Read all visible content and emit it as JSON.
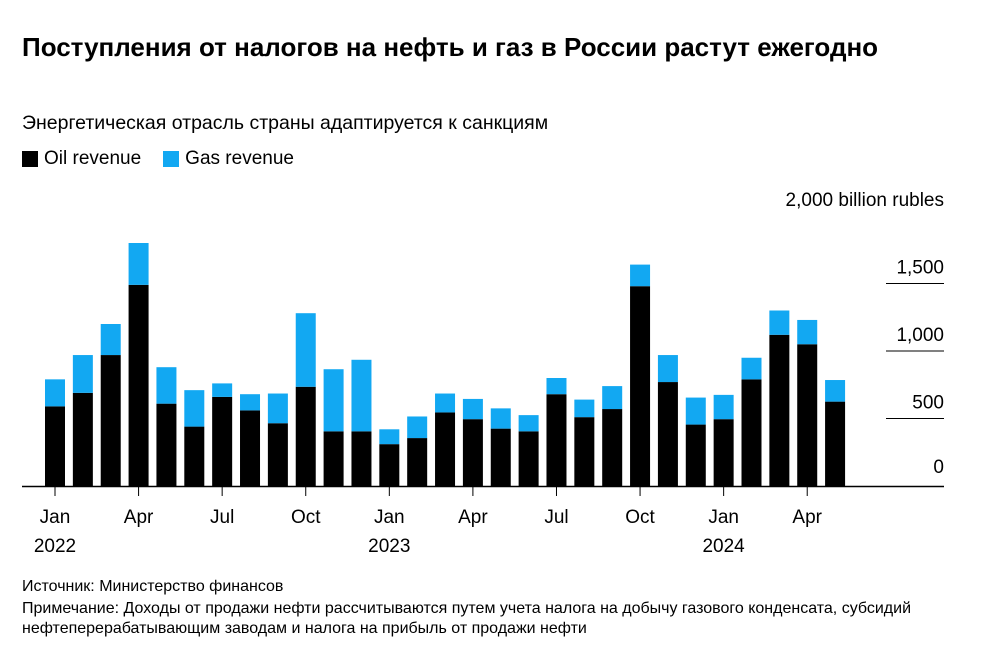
{
  "header": {
    "title": "Поступления от налогов на нефть и газ в России растут ежегодно",
    "subtitle": "Энергетическая отрасль страны адаптируется к санкциям"
  },
  "legend": [
    {
      "label": "Oil revenue",
      "color": "#000000"
    },
    {
      "label": "Gas revenue",
      "color": "#12a8f2"
    }
  ],
  "footer": {
    "source": "Источник: Министерство финансов",
    "note": "Примечание: Доходы от продажи нефти рассчитываются путем учета налога на добычу газового конденсата, субсидий нефтеперерабатывающим заводам и налога на прибыль от продажи нефти"
  },
  "chart_data": {
    "type": "bar",
    "stacked": true,
    "unit_label": "2,000 billion rubles",
    "ylim": [
      0,
      2000
    ],
    "y_ticks": [
      {
        "value": 0,
        "label": "0"
      },
      {
        "value": 500,
        "label": "500"
      },
      {
        "value": 1000,
        "label": "1,000"
      },
      {
        "value": 1500,
        "label": "1,500"
      },
      {
        "value": 2000,
        "label": "2,000 billion rubles"
      }
    ],
    "categories": [
      "2022-01",
      "2022-02",
      "2022-03",
      "2022-04",
      "2022-05",
      "2022-06",
      "2022-07",
      "2022-08",
      "2022-09",
      "2022-10",
      "2022-11",
      "2022-12",
      "2023-01",
      "2023-02",
      "2023-03",
      "2023-04",
      "2023-05",
      "2023-06",
      "2023-07",
      "2023-08",
      "2023-09",
      "2023-10",
      "2023-11",
      "2023-12",
      "2024-01",
      "2024-02",
      "2024-03",
      "2024-04",
      "2024-05"
    ],
    "x_tick_labels": [
      {
        "index": 0,
        "label": "Jan",
        "year": "2022"
      },
      {
        "index": 3,
        "label": "Apr"
      },
      {
        "index": 6,
        "label": "Jul"
      },
      {
        "index": 9,
        "label": "Oct"
      },
      {
        "index": 12,
        "label": "Jan",
        "year": "2023"
      },
      {
        "index": 15,
        "label": "Apr"
      },
      {
        "index": 18,
        "label": "Jul"
      },
      {
        "index": 21,
        "label": "Oct"
      },
      {
        "index": 24,
        "label": "Jan",
        "year": "2024"
      },
      {
        "index": 27,
        "label": "Apr"
      }
    ],
    "series": [
      {
        "name": "Oil revenue",
        "color": "#000000",
        "values": [
          590,
          690,
          970,
          1490,
          610,
          440,
          660,
          560,
          465,
          735,
          405,
          405,
          310,
          355,
          545,
          495,
          425,
          405,
          680,
          510,
          570,
          1480,
          770,
          455,
          495,
          790,
          1120,
          1050,
          625
        ]
      },
      {
        "name": "Gas revenue",
        "color": "#12a8f2",
        "values": [
          200,
          280,
          230,
          310,
          270,
          270,
          100,
          120,
          220,
          545,
          460,
          530,
          110,
          160,
          140,
          150,
          150,
          120,
          120,
          130,
          170,
          160,
          200,
          200,
          180,
          160,
          180,
          180,
          160
        ]
      }
    ]
  }
}
